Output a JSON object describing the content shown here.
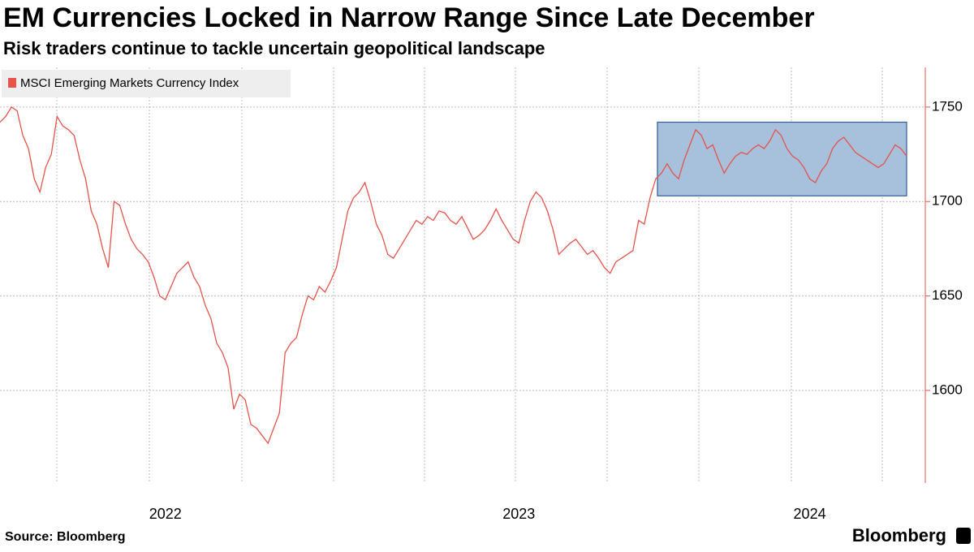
{
  "chart_data": {
    "type": "line",
    "title": "EM Currencies Locked in Narrow Range Since Late December",
    "subtitle": "Risk traders continue to tackle uncertain geopolitical landscape",
    "source": "Source: Bloomberg",
    "logo": "Bloomberg",
    "categories": [
      null,
      null,
      null,
      null,
      null,
      null,
      null,
      null,
      null,
      null,
      null,
      null,
      null,
      null,
      null,
      null,
      null,
      null,
      null,
      null,
      null,
      null,
      null,
      null,
      null,
      null,
      null,
      null,
      null,
      "2022",
      null,
      null,
      null,
      null,
      null,
      null,
      null,
      null,
      null,
      null,
      null,
      null,
      null,
      null,
      null,
      null,
      null,
      null,
      null,
      null,
      null,
      null,
      null,
      null,
      null,
      null,
      null,
      null,
      null,
      null,
      null,
      null,
      null,
      null,
      null,
      null,
      null,
      null,
      null,
      null,
      null,
      null,
      null,
      null,
      null,
      null,
      null,
      null,
      null,
      null,
      null,
      null,
      null,
      null,
      null,
      null,
      null,
      null,
      null,
      null,
      null,
      "2023",
      null,
      null,
      null,
      null,
      null,
      null,
      null,
      null,
      null,
      null,
      null,
      null,
      null,
      null,
      null,
      null,
      null,
      null,
      null,
      null,
      null,
      null,
      null,
      null,
      null,
      null,
      null,
      null,
      null,
      null,
      null,
      null,
      null,
      null,
      null,
      null,
      null,
      null,
      null,
      null,
      null,
      null,
      null,
      null,
      null,
      null,
      null,
      null,
      null,
      null,
      "2024",
      null,
      null,
      null,
      null,
      null,
      null,
      null,
      null,
      null,
      null,
      null,
      null,
      null,
      null,
      null,
      null,
      null
    ],
    "series": [
      {
        "name": "MSCI Emerging Markets Currency Index",
        "color": "#e5534b",
        "values": [
          1742,
          1745,
          1750,
          1748,
          1735,
          1728,
          1712,
          1705,
          1718,
          1725,
          1745,
          1740,
          1738,
          1735,
          1722,
          1712,
          1695,
          1688,
          1675,
          1665,
          1700,
          1698,
          1688,
          1680,
          1675,
          1672,
          1668,
          1660,
          1650,
          1648,
          1655,
          1662,
          1665,
          1668,
          1660,
          1655,
          1645,
          1638,
          1625,
          1620,
          1612,
          1590,
          1598,
          1595,
          1582,
          1580,
          1576,
          1572,
          1580,
          1588,
          1620,
          1625,
          1628,
          1640,
          1650,
          1648,
          1655,
          1652,
          1658,
          1665,
          1680,
          1695,
          1702,
          1705,
          1710,
          1700,
          1688,
          1682,
          1672,
          1670,
          1675,
          1680,
          1685,
          1690,
          1688,
          1692,
          1690,
          1695,
          1694,
          1690,
          1688,
          1692,
          1686,
          1680,
          1682,
          1685,
          1690,
          1696,
          1690,
          1685,
          1680,
          1678,
          1690,
          1700,
          1705,
          1702,
          1695,
          1685,
          1672,
          1675,
          1678,
          1680,
          1676,
          1672,
          1674,
          1670,
          1665,
          1662,
          1668,
          1670,
          1672,
          1674,
          1690,
          1688,
          1702,
          1712,
          1715,
          1720,
          1715,
          1712,
          1722,
          1730,
          1738,
          1735,
          1728,
          1730,
          1722,
          1715,
          1720,
          1724,
          1726,
          1725,
          1728,
          1730,
          1728,
          1732,
          1738,
          1735,
          1728,
          1724,
          1722,
          1718,
          1712,
          1710,
          1716,
          1720,
          1728,
          1732,
          1734,
          1730,
          1726,
          1724,
          1722,
          1720,
          1718,
          1720,
          1725,
          1730,
          1728,
          1724
        ]
      }
    ],
    "highlight": {
      "ylim": [
        1703,
        1742
      ],
      "color": "#a7c0dc",
      "border": "#2e5d9a"
    },
    "ylim": [
      1551,
      1771
    ],
    "yticks": [
      1600,
      1650,
      1700,
      1750
    ],
    "grid": true,
    "legend": "top-left"
  }
}
